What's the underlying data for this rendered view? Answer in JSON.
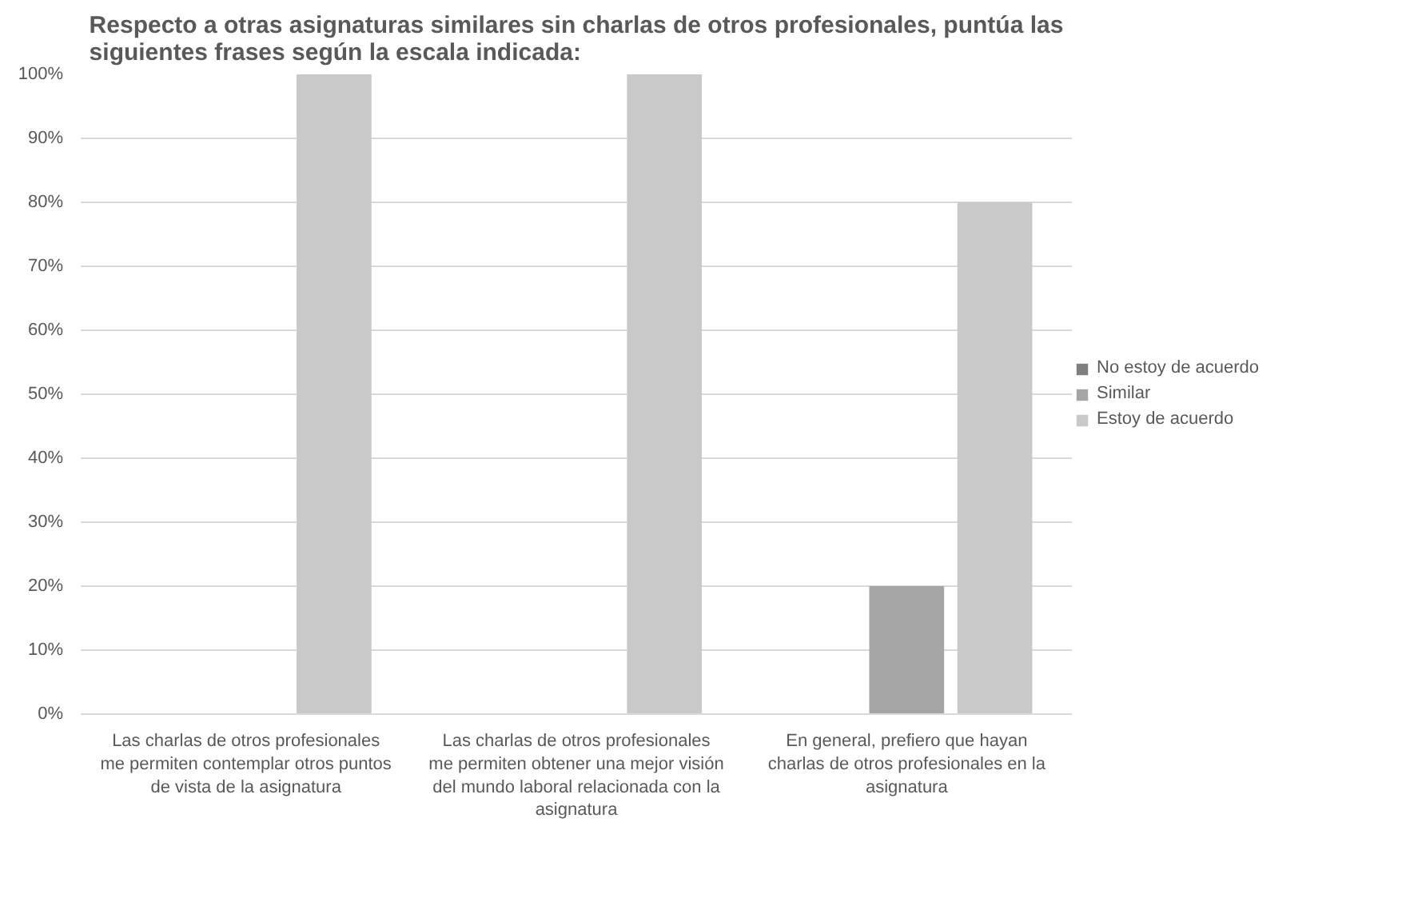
{
  "chart_data": {
    "type": "bar",
    "title": "Respecto a otras asignaturas similares sin charlas de otros profesionales, puntúa las siguientes frases según la escala indicada:",
    "categories": [
      "Las charlas de otros profesionales me permiten contemplar otros puntos de vista de la asignatura",
      "Las charlas de otros profesionales me permiten obtener una mejor visión del mundo laboral relacionada con la asignatura",
      "En general, prefiero que hayan charlas de otros profesionales en la asignatura"
    ],
    "series": [
      {
        "name": "No estoy de acuerdo",
        "color": "#7f7f7f",
        "values": [
          0,
          0,
          0
        ]
      },
      {
        "name": "Similar",
        "color": "#a5a5a5",
        "values": [
          0,
          0,
          20
        ]
      },
      {
        "name": "Estoy de acuerdo",
        "color": "#c9c9c9",
        "values": [
          100,
          100,
          80
        ]
      }
    ],
    "ylim": [
      0,
      100
    ],
    "yticks": [
      {
        "value": 0,
        "label": "0%"
      },
      {
        "value": 10,
        "label": "10%"
      },
      {
        "value": 20,
        "label": "20%"
      },
      {
        "value": 30,
        "label": "30%"
      },
      {
        "value": 40,
        "label": "40%"
      },
      {
        "value": 50,
        "label": "50%"
      },
      {
        "value": 60,
        "label": "60%"
      },
      {
        "value": 70,
        "label": "70%"
      },
      {
        "value": 80,
        "label": "80%"
      },
      {
        "value": 90,
        "label": "90%"
      },
      {
        "value": 100,
        "label": "100%"
      }
    ],
    "grid": "y",
    "legend": "right"
  }
}
